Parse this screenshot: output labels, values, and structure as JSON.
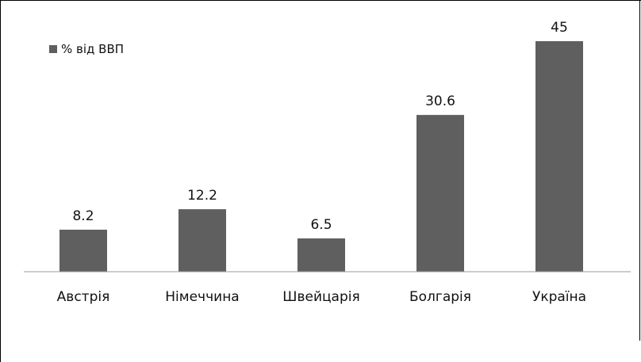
{
  "chart_data": {
    "type": "bar",
    "categories": [
      "Австрія",
      "Німеччина",
      "Швейцарія",
      "Болгарія",
      "Україна"
    ],
    "series": [
      {
        "name": "% від ВВП",
        "values": [
          8.2,
          12.2,
          6.5,
          30.6,
          45
        ],
        "color": "#5f5f5f"
      }
    ],
    "data_labels": [
      "8.2",
      "12.2",
      "6.5",
      "30.6",
      "45"
    ],
    "title": "",
    "xlabel": "",
    "ylabel": "",
    "ylim": [
      0,
      48
    ],
    "grid": false,
    "legend_position": "top-left"
  },
  "legend": {
    "label": "% від ВВП"
  }
}
